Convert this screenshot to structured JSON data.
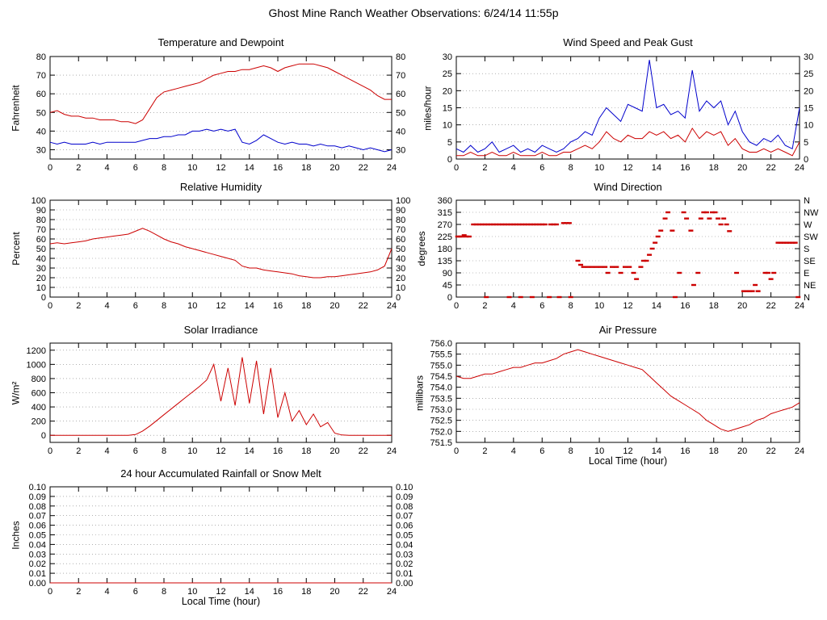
{
  "page_title": "Ghost Mine Ranch Weather Observations: 6/24/14 11:55p",
  "colors": {
    "red": "#cc0000",
    "blue": "#0000cc",
    "grid": "#808080",
    "axis": "#000000",
    "background": "#ffffff"
  },
  "x_axis_label": "Local Time (hour)",
  "chart_data": [
    {
      "id": "temperature",
      "type": "line",
      "title": "Temperature and Dewpoint",
      "ylabel": "Fahrenheit",
      "xlabel": "",
      "xlim": [
        0,
        24
      ],
      "ylim": [
        25,
        80
      ],
      "yticks": [
        30,
        40,
        50,
        60,
        70,
        80
      ],
      "ytick_decimals": 0,
      "xtick_step": 2,
      "right_labels": "mirror",
      "x_start": 0,
      "x_step": 0.5,
      "series": [
        {
          "name": "temperature",
          "color": "#cc0000",
          "values": [
            50,
            51,
            49,
            48,
            48,
            47,
            47,
            46,
            46,
            46,
            45,
            45,
            44,
            46,
            52,
            58,
            61,
            62,
            63,
            64,
            65,
            66,
            68,
            70,
            71,
            72,
            72,
            73,
            73,
            74,
            75,
            74,
            72,
            74,
            75,
            76,
            76,
            76,
            75,
            74,
            72,
            70,
            68,
            66,
            64,
            62,
            59,
            57,
            57
          ]
        },
        {
          "name": "dewpoint",
          "color": "#0000cc",
          "values": [
            34,
            33,
            34,
            33,
            33,
            33,
            34,
            33,
            34,
            34,
            34,
            34,
            34,
            35,
            36,
            36,
            37,
            37,
            38,
            38,
            40,
            40,
            41,
            40,
            41,
            40,
            41,
            34,
            33,
            35,
            38,
            36,
            34,
            33,
            34,
            33,
            33,
            32,
            33,
            32,
            32,
            31,
            32,
            31,
            30,
            31,
            30,
            29,
            30
          ]
        }
      ]
    },
    {
      "id": "wind_speed",
      "type": "line",
      "title": "Wind Speed and Peak Gust",
      "ylabel": "miles/hour",
      "xlabel": "",
      "xlim": [
        0,
        24
      ],
      "ylim": [
        0,
        30
      ],
      "yticks": [
        0,
        5,
        10,
        15,
        20,
        25,
        30
      ],
      "ytick_decimals": 0,
      "xtick_step": 2,
      "right_labels": "mirror",
      "x_start": 0,
      "x_step": 0.5,
      "series": [
        {
          "name": "peak-gust",
          "color": "#0000cc",
          "values": [
            3,
            2,
            4,
            2,
            3,
            5,
            2,
            3,
            4,
            2,
            3,
            2,
            4,
            3,
            2,
            3,
            5,
            6,
            8,
            7,
            12,
            15,
            13,
            11,
            16,
            15,
            14,
            29,
            15,
            16,
            13,
            14,
            12,
            26,
            14,
            17,
            15,
            17,
            10,
            14,
            8,
            5,
            4,
            6,
            5,
            7,
            4,
            3,
            15
          ]
        },
        {
          "name": "wind-speed",
          "color": "#cc0000",
          "values": [
            1,
            1,
            2,
            1,
            1,
            2,
            1,
            1,
            2,
            1,
            1,
            1,
            2,
            1,
            1,
            2,
            2,
            3,
            4,
            3,
            5,
            8,
            6,
            5,
            7,
            6,
            6,
            8,
            7,
            8,
            6,
            7,
            5,
            9,
            6,
            8,
            7,
            8,
            4,
            6,
            3,
            2,
            2,
            3,
            2,
            3,
            2,
            1,
            5
          ]
        }
      ]
    },
    {
      "id": "humidity",
      "type": "line",
      "title": "Relative Humidity",
      "ylabel": "Percent",
      "xlabel": "",
      "xlim": [
        0,
        24
      ],
      "ylim": [
        0,
        100
      ],
      "yticks": [
        0,
        10,
        20,
        30,
        40,
        50,
        60,
        70,
        80,
        90,
        100
      ],
      "ytick_decimals": 0,
      "xtick_step": 2,
      "right_labels": "mirror",
      "x_start": 0,
      "x_step": 0.5,
      "series": [
        {
          "name": "relative-humidity",
          "color": "#cc0000",
          "values": [
            55,
            56,
            55,
            56,
            57,
            58,
            60,
            61,
            62,
            63,
            64,
            65,
            68,
            71,
            68,
            64,
            60,
            57,
            55,
            52,
            50,
            48,
            46,
            44,
            42,
            40,
            38,
            32,
            30,
            30,
            28,
            27,
            26,
            25,
            24,
            22,
            21,
            20,
            20,
            21,
            21,
            22,
            23,
            24,
            25,
            26,
            28,
            32,
            50
          ]
        }
      ]
    },
    {
      "id": "wind_direction",
      "type": "scatter",
      "title": "Wind Direction",
      "ylabel": "degrees",
      "xlabel": "",
      "xlim": [
        0,
        24
      ],
      "ylim": [
        0,
        360
      ],
      "yticks": [
        0,
        45,
        90,
        135,
        180,
        225,
        270,
        315,
        360
      ],
      "ytick_decimals": 0,
      "xtick_step": 2,
      "right_labels": [
        "N",
        "NE",
        "E",
        "SE",
        "S",
        "SW",
        "W",
        "NW",
        "N"
      ],
      "marker_color": "#cc0000",
      "points": [
        [
          0.1,
          225
        ],
        [
          0.25,
          225
        ],
        [
          0.4,
          225
        ],
        [
          0.55,
          230
        ],
        [
          0.7,
          225
        ],
        [
          0.9,
          225
        ],
        [
          1.2,
          270
        ],
        [
          1.4,
          270
        ],
        [
          1.6,
          270
        ],
        [
          1.8,
          270
        ],
        [
          2.0,
          270
        ],
        [
          2.2,
          270
        ],
        [
          2.4,
          270
        ],
        [
          2.6,
          270
        ],
        [
          2.8,
          270
        ],
        [
          3.0,
          270
        ],
        [
          3.2,
          270
        ],
        [
          3.4,
          270
        ],
        [
          3.6,
          270
        ],
        [
          3.8,
          270
        ],
        [
          4.0,
          270
        ],
        [
          4.2,
          270
        ],
        [
          4.4,
          270
        ],
        [
          4.6,
          270
        ],
        [
          4.8,
          270
        ],
        [
          5.0,
          270
        ],
        [
          5.2,
          270
        ],
        [
          5.4,
          270
        ],
        [
          5.6,
          270
        ],
        [
          5.8,
          270
        ],
        [
          6.0,
          270
        ],
        [
          6.2,
          270
        ],
        [
          2.1,
          0
        ],
        [
          3.7,
          0
        ],
        [
          4.5,
          0
        ],
        [
          5.3,
          0
        ],
        [
          6.5,
          0
        ],
        [
          7.2,
          0
        ],
        [
          8.0,
          0
        ],
        [
          6.6,
          270
        ],
        [
          6.8,
          270
        ],
        [
          7.0,
          270
        ],
        [
          7.5,
          275
        ],
        [
          7.7,
          275
        ],
        [
          7.9,
          275
        ],
        [
          8.5,
          135
        ],
        [
          8.7,
          120
        ],
        [
          8.9,
          112
        ],
        [
          9.2,
          112
        ],
        [
          9.5,
          112
        ],
        [
          9.8,
          112
        ],
        [
          10.1,
          112
        ],
        [
          10.4,
          112
        ],
        [
          10.6,
          90
        ],
        [
          10.9,
          112
        ],
        [
          11.2,
          112
        ],
        [
          11.5,
          90
        ],
        [
          11.8,
          112
        ],
        [
          12.1,
          112
        ],
        [
          12.4,
          90
        ],
        [
          12.6,
          67
        ],
        [
          12.9,
          112
        ],
        [
          13.1,
          135
        ],
        [
          13.3,
          135
        ],
        [
          13.5,
          157
        ],
        [
          13.7,
          180
        ],
        [
          13.9,
          202
        ],
        [
          14.1,
          225
        ],
        [
          14.3,
          247
        ],
        [
          14.6,
          292
        ],
        [
          14.8,
          315
        ],
        [
          15.1,
          247
        ],
        [
          15.3,
          0
        ],
        [
          15.6,
          90
        ],
        [
          15.9,
          315
        ],
        [
          16.1,
          292
        ],
        [
          16.4,
          247
        ],
        [
          16.6,
          45
        ],
        [
          16.9,
          90
        ],
        [
          17.1,
          292
        ],
        [
          17.3,
          315
        ],
        [
          17.5,
          315
        ],
        [
          17.7,
          292
        ],
        [
          17.9,
          315
        ],
        [
          18.1,
          315
        ],
        [
          18.3,
          292
        ],
        [
          18.5,
          270
        ],
        [
          18.7,
          292
        ],
        [
          18.9,
          270
        ],
        [
          19.1,
          245
        ],
        [
          19.6,
          90
        ],
        [
          20.1,
          22
        ],
        [
          20.3,
          22
        ],
        [
          20.5,
          22
        ],
        [
          20.7,
          22
        ],
        [
          20.9,
          45
        ],
        [
          21.1,
          22
        ],
        [
          21.6,
          90
        ],
        [
          21.8,
          90
        ],
        [
          22.0,
          67
        ],
        [
          22.2,
          90
        ],
        [
          22.5,
          202
        ],
        [
          22.7,
          202
        ],
        [
          22.9,
          202
        ],
        [
          23.1,
          202
        ],
        [
          23.3,
          202
        ],
        [
          23.5,
          202
        ],
        [
          23.7,
          202
        ],
        [
          23.9,
          0
        ]
      ]
    },
    {
      "id": "solar",
      "type": "line",
      "title": "Solar Irradiance",
      "ylabel": "W/m²",
      "xlabel": "",
      "xlim": [
        0,
        24
      ],
      "ylim": [
        -100,
        1300
      ],
      "yticks": [
        0,
        200,
        400,
        600,
        800,
        1000,
        1200
      ],
      "ytick_decimals": 0,
      "xtick_step": 2,
      "right_labels": "none",
      "x_start": 0,
      "x_step": 0.5,
      "series": [
        {
          "name": "solar-irradiance",
          "color": "#cc0000",
          "values": [
            0,
            0,
            0,
            0,
            0,
            0,
            0,
            0,
            0,
            0,
            0,
            0,
            10,
            60,
            130,
            210,
            290,
            370,
            450,
            530,
            610,
            690,
            780,
            1000,
            480,
            950,
            420,
            1100,
            450,
            1050,
            300,
            950,
            250,
            600,
            200,
            350,
            150,
            300,
            120,
            180,
            30,
            5,
            0,
            0,
            0,
            0,
            0,
            0,
            0
          ]
        }
      ]
    },
    {
      "id": "pressure",
      "type": "line",
      "title": "Air Pressure",
      "ylabel": "millibars",
      "xlabel": "Local Time (hour)",
      "xlim": [
        0,
        24
      ],
      "ylim": [
        751.5,
        756.0
      ],
      "yticks": [
        751.5,
        752.0,
        752.5,
        753.0,
        753.5,
        754.0,
        754.5,
        755.0,
        755.5,
        756.0
      ],
      "ytick_decimals": 1,
      "xtick_step": 2,
      "right_labels": "none",
      "x_start": 0,
      "x_step": 0.5,
      "series": [
        {
          "name": "air-pressure",
          "color": "#cc0000",
          "values": [
            754.5,
            754.4,
            754.4,
            754.5,
            754.6,
            754.6,
            754.7,
            754.8,
            754.9,
            754.9,
            755.0,
            755.1,
            755.1,
            755.2,
            755.3,
            755.5,
            755.6,
            755.7,
            755.6,
            755.5,
            755.4,
            755.3,
            755.2,
            755.1,
            755.0,
            754.9,
            754.8,
            754.5,
            754.2,
            753.9,
            753.6,
            753.4,
            753.2,
            753.0,
            752.8,
            752.5,
            752.3,
            752.1,
            752.0,
            752.1,
            752.2,
            752.3,
            752.5,
            752.6,
            752.8,
            752.9,
            753.0,
            753.1,
            753.3
          ]
        }
      ]
    },
    {
      "id": "rainfall",
      "type": "line",
      "title": "24 hour Accumulated Rainfall or Snow Melt",
      "ylabel": "Inches",
      "xlabel": "Local Time (hour)",
      "xlim": [
        0,
        24
      ],
      "ylim": [
        0,
        0.1
      ],
      "yticks": [
        0,
        0.01,
        0.02,
        0.03,
        0.04,
        0.05,
        0.06,
        0.07,
        0.08,
        0.09,
        0.1
      ],
      "ytick_decimals": 2,
      "xtick_step": 2,
      "right_labels": "mirror",
      "x_start": 0,
      "x_step": 24,
      "series": [
        {
          "name": "rainfall",
          "color": "#cc0000",
          "values": [
            0,
            0
          ]
        }
      ]
    }
  ]
}
